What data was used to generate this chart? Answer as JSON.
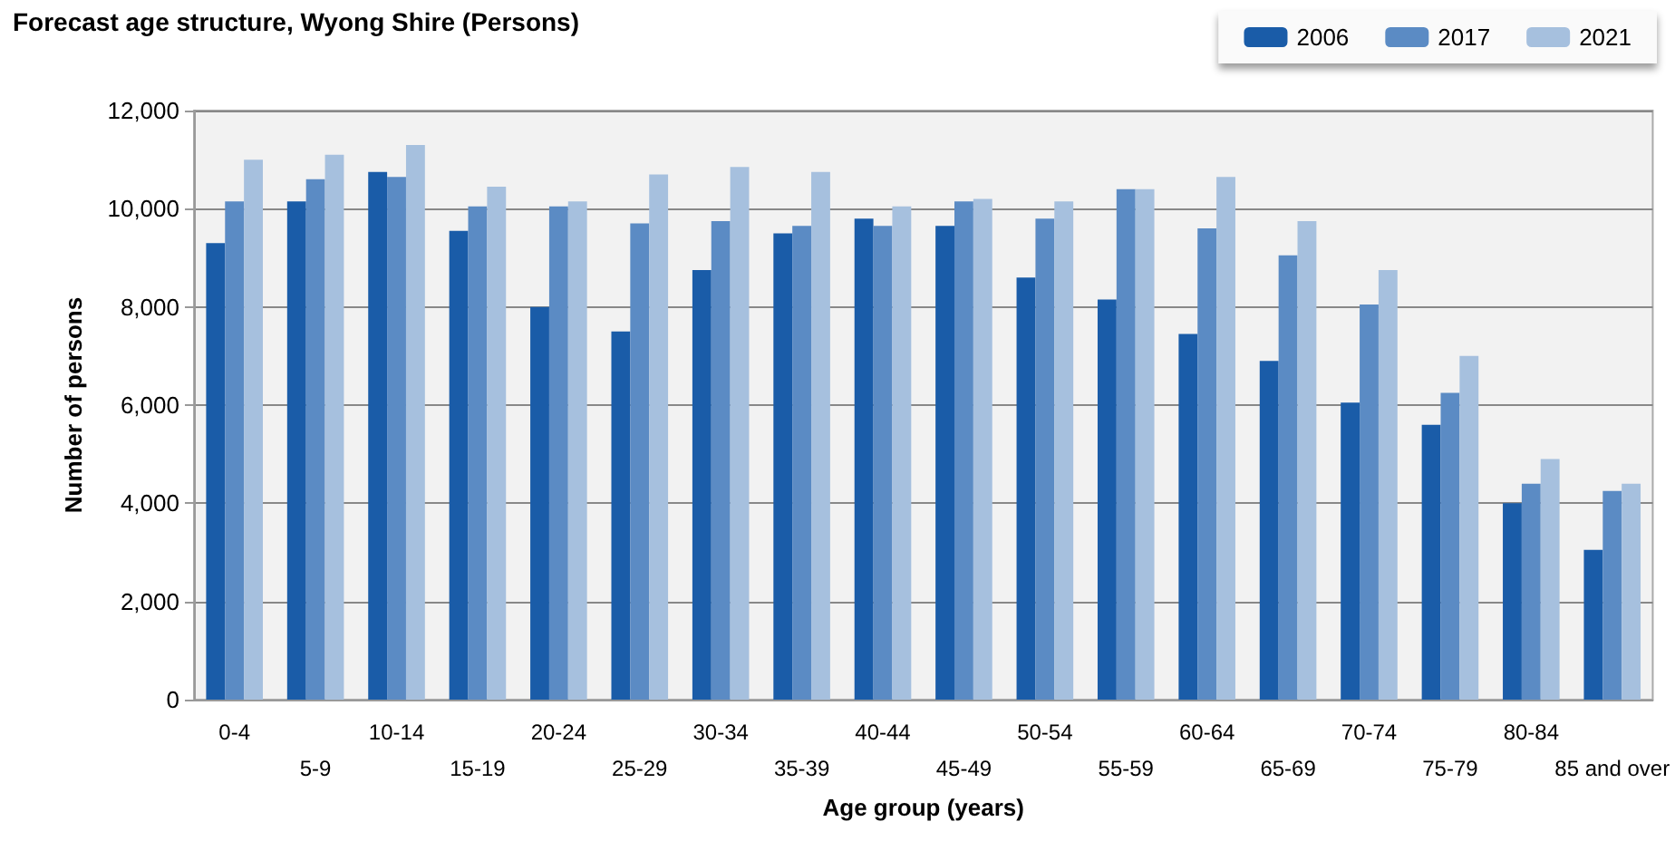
{
  "chart_data": {
    "type": "bar",
    "title": "Forecast age structure, Wyong Shire (Persons)",
    "xlabel": "Age group (years)",
    "ylabel": "Number of persons",
    "categories": [
      "0-4",
      "5-9",
      "10-14",
      "15-19",
      "20-24",
      "25-29",
      "30-34",
      "35-39",
      "40-44",
      "45-49",
      "50-54",
      "55-59",
      "60-64",
      "65-69",
      "70-74",
      "75-79",
      "80-84",
      "85 and over"
    ],
    "series": [
      {
        "name": "2006",
        "color": "#1a5ca8",
        "values": [
          9300,
          10150,
          10750,
          9550,
          8000,
          7500,
          8750,
          9500,
          9800,
          9650,
          8600,
          8150,
          7450,
          6900,
          6050,
          5600,
          4000,
          3050
        ]
      },
      {
        "name": "2017",
        "color": "#5b8bc4",
        "values": [
          10150,
          10600,
          10650,
          10050,
          10050,
          9700,
          9750,
          9650,
          9650,
          10150,
          9800,
          10400,
          9600,
          9050,
          8050,
          6250,
          4400,
          4250
        ]
      },
      {
        "name": "2021",
        "color": "#a6c0de",
        "values": [
          11000,
          11100,
          11300,
          10450,
          10150,
          10700,
          10850,
          10750,
          10050,
          10200,
          10150,
          10400,
          10650,
          9750,
          8750,
          7000,
          4900,
          4400
        ]
      }
    ],
    "ylim": [
      0,
      12000
    ],
    "yticks": [
      0,
      {
        "value": 2000,
        "label": "2,000"
      },
      {
        "value": 4000,
        "label": "4,000"
      },
      {
        "value": 6000,
        "label": "6,000"
      },
      {
        "value": 8000,
        "label": "8,000"
      },
      {
        "value": 10000,
        "label": "10,000"
      },
      {
        "value": 12000,
        "label": "12,000"
      }
    ],
    "grid": "y",
    "legend": "top right"
  }
}
